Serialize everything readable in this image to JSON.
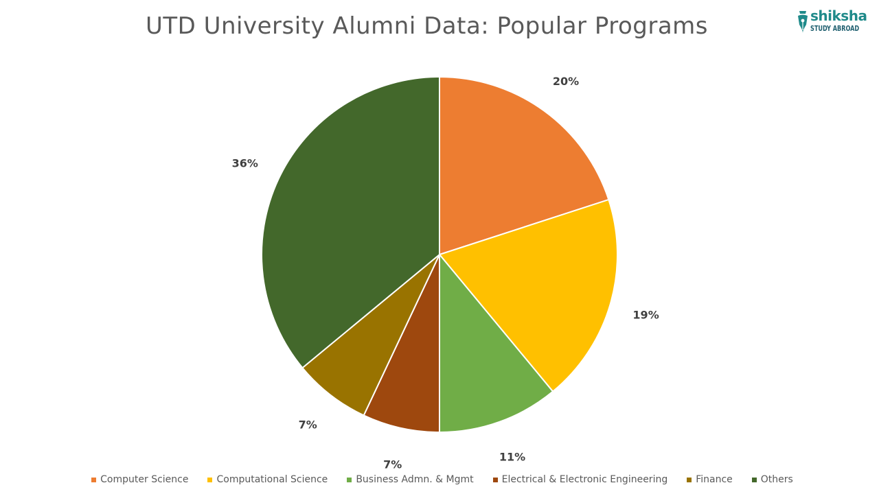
{
  "title": "UTD University Alumni Data: Popular Programs",
  "logo": {
    "word": "shiksha",
    "sub": "STUDY ABROAD",
    "icon": "pen-nib-icon",
    "color": "#1f8a8a"
  },
  "chart_data": {
    "type": "pie",
    "title": "UTD University Alumni Data: Popular Programs",
    "start_angle_deg": 0,
    "direction": "clockwise",
    "legend_position": "bottom",
    "slices": [
      {
        "label": "Computer Science",
        "value": 20,
        "display": "20%",
        "color": "#ED7D31"
      },
      {
        "label": "Computational Science",
        "value": 19,
        "display": "19%",
        "color": "#FFC000"
      },
      {
        "label": "Business Admn. & Mgmt",
        "value": 11,
        "display": "11%",
        "color": "#70AD47"
      },
      {
        "label": "Electrical & Electronic Engineering",
        "value": 7,
        "display": "7%",
        "color": "#9E480E"
      },
      {
        "label": "Finance",
        "value": 7,
        "display": "7%",
        "color": "#997300"
      },
      {
        "label": "Others",
        "value": 36,
        "display": "36%",
        "color": "#43682B"
      }
    ]
  }
}
